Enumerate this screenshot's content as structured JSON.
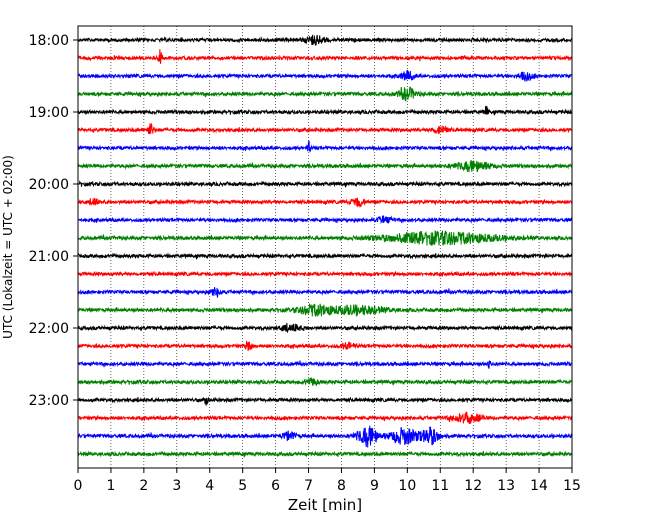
{
  "chart_data": {
    "type": "line",
    "title": "",
    "xlabel": "Zeit  [min]",
    "ylabel": "UTC (Lokalzeit = UTC + 02:00)",
    "xlim": [
      0,
      15
    ],
    "x_ticks": [
      "0",
      "1",
      "2",
      "3",
      "4",
      "5",
      "6",
      "7",
      "8",
      "9",
      "10",
      "11",
      "12",
      "13",
      "14",
      "15"
    ],
    "y_tick_labels": [
      "18:00",
      "19:00",
      "20:00",
      "21:00",
      "22:00",
      "23:00"
    ],
    "grid": "vertical dotted",
    "colors": [
      "#000000",
      "#ff0000",
      "#0000ff",
      "#008000"
    ],
    "row_start": "18:00",
    "row_interval_minutes": 15,
    "rows": [
      {
        "start": "18:00",
        "color": "#000000",
        "events": [
          {
            "t": 7.2,
            "a": 4,
            "w": 0.3
          }
        ]
      },
      {
        "start": "18:15",
        "color": "#ff0000",
        "events": [
          {
            "t": 2.5,
            "a": 9,
            "w": 0.05
          }
        ]
      },
      {
        "start": "18:30",
        "color": "#0000ff",
        "events": [
          {
            "t": 10.0,
            "a": 4,
            "w": 0.2
          },
          {
            "t": 13.6,
            "a": 4,
            "w": 0.2
          }
        ]
      },
      {
        "start": "18:45",
        "color": "#008000",
        "events": [
          {
            "t": 10.0,
            "a": 6,
            "w": 0.25
          }
        ]
      },
      {
        "start": "19:00",
        "color": "#000000",
        "events": [
          {
            "t": 12.4,
            "a": 5,
            "w": 0.05
          }
        ]
      },
      {
        "start": "19:15",
        "color": "#ff0000",
        "events": [
          {
            "t": 2.2,
            "a": 6,
            "w": 0.1
          },
          {
            "t": 11.0,
            "a": 4,
            "w": 0.2
          }
        ]
      },
      {
        "start": "19:30",
        "color": "#0000ff",
        "events": [
          {
            "t": 7.0,
            "a": 6,
            "w": 0.05
          }
        ]
      },
      {
        "start": "19:45",
        "color": "#008000",
        "events": [
          {
            "t": 12.0,
            "a": 5,
            "w": 0.5
          }
        ]
      },
      {
        "start": "20:00",
        "color": "#000000",
        "events": []
      },
      {
        "start": "20:15",
        "color": "#ff0000",
        "events": [
          {
            "t": 0.5,
            "a": 4,
            "w": 0.1
          },
          {
            "t": 8.5,
            "a": 4,
            "w": 0.2
          }
        ]
      },
      {
        "start": "20:30",
        "color": "#0000ff",
        "events": [
          {
            "t": 9.3,
            "a": 3,
            "w": 0.2
          }
        ]
      },
      {
        "start": "20:45",
        "color": "#008000",
        "events": [
          {
            "t": 11.0,
            "a": 6,
            "w": 1.6
          }
        ]
      },
      {
        "start": "21:00",
        "color": "#000000",
        "events": []
      },
      {
        "start": "21:15",
        "color": "#ff0000",
        "events": []
      },
      {
        "start": "21:30",
        "color": "#0000ff",
        "events": [
          {
            "t": 4.2,
            "a": 4,
            "w": 0.15
          }
        ]
      },
      {
        "start": "21:45",
        "color": "#008000",
        "events": [
          {
            "t": 7.2,
            "a": 5,
            "w": 0.5
          },
          {
            "t": 8.5,
            "a": 4,
            "w": 0.8
          }
        ]
      },
      {
        "start": "22:00",
        "color": "#000000",
        "events": [
          {
            "t": 6.5,
            "a": 3,
            "w": 0.3
          }
        ]
      },
      {
        "start": "22:15",
        "color": "#ff0000",
        "events": [
          {
            "t": 5.2,
            "a": 5,
            "w": 0.1
          },
          {
            "t": 8.2,
            "a": 3,
            "w": 0.2
          }
        ]
      },
      {
        "start": "22:30",
        "color": "#0000ff",
        "events": [
          {
            "t": 12.5,
            "a": 6,
            "w": 0.05
          }
        ]
      },
      {
        "start": "22:45",
        "color": "#008000",
        "events": [
          {
            "t": 7.1,
            "a": 3,
            "w": 0.2
          }
        ]
      },
      {
        "start": "23:00",
        "color": "#000000",
        "events": [
          {
            "t": 3.9,
            "a": 5,
            "w": 0.05
          }
        ]
      },
      {
        "start": "23:15",
        "color": "#ff0000",
        "events": [
          {
            "t": 11.8,
            "a": 5,
            "w": 0.4
          }
        ]
      },
      {
        "start": "23:30",
        "color": "#0000ff",
        "events": [
          {
            "t": 8.8,
            "a": 10,
            "w": 0.3
          },
          {
            "t": 9.9,
            "a": 8,
            "w": 0.4
          },
          {
            "t": 10.7,
            "a": 8,
            "w": 0.25
          },
          {
            "t": 6.4,
            "a": 4,
            "w": 0.2
          }
        ]
      },
      {
        "start": "23:45",
        "color": "#008000",
        "events": []
      }
    ]
  }
}
